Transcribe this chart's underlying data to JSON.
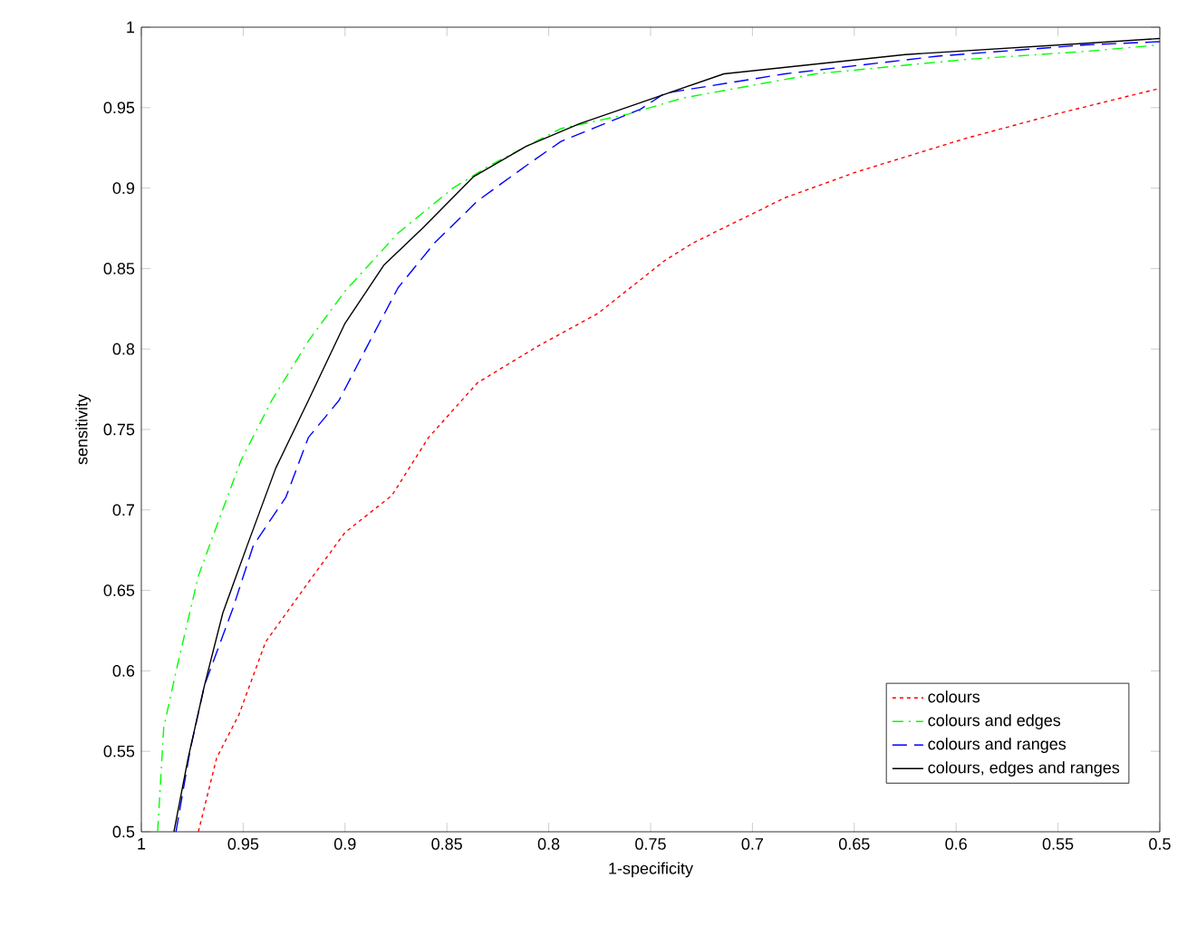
{
  "chart_data": {
    "type": "line",
    "xlabel": "1-specificity",
    "ylabel": "sensitivity",
    "xlim": [
      1,
      0.5
    ],
    "ylim": [
      0.5,
      1
    ],
    "xticks": [
      1,
      0.95,
      0.9,
      0.85,
      0.8,
      0.75,
      0.7,
      0.65,
      0.6,
      0.55,
      0.5
    ],
    "yticks": [
      0.5,
      0.55,
      0.6,
      0.65,
      0.7,
      0.75,
      0.8,
      0.85,
      0.9,
      0.95,
      1
    ],
    "legend": "bottom right",
    "series": [
      {
        "name": "colours",
        "color": "#ff0000",
        "line_style": "dotted",
        "x": [
          0.972,
          0.963,
          0.952,
          0.939,
          0.918,
          0.9,
          0.877,
          0.859,
          0.835,
          0.805,
          0.776,
          0.743,
          0.729,
          0.684,
          0.649,
          0.595,
          0.551,
          0.5
        ],
        "values": [
          0.5,
          0.546,
          0.573,
          0.618,
          0.655,
          0.686,
          0.709,
          0.745,
          0.779,
          0.802,
          0.822,
          0.855,
          0.866,
          0.894,
          0.91,
          0.931,
          0.946,
          0.962
        ]
      },
      {
        "name": "colours and edges",
        "color": "#00ff00",
        "line_style": "dashdot",
        "x": [
          0.992,
          0.989,
          0.982,
          0.972,
          0.961,
          0.951,
          0.936,
          0.918,
          0.9,
          0.874,
          0.847,
          0.829,
          0.794,
          0.761,
          0.734,
          0.669,
          0.595,
          0.536,
          0.5
        ],
        "values": [
          0.5,
          0.565,
          0.605,
          0.659,
          0.697,
          0.731,
          0.768,
          0.805,
          0.836,
          0.872,
          0.9,
          0.914,
          0.937,
          0.946,
          0.956,
          0.971,
          0.98,
          0.985,
          0.989
        ]
      },
      {
        "name": "colours and ranges",
        "color": "#0000ff",
        "line_style": "dashed",
        "x": [
          0.983,
          0.976,
          0.969,
          0.955,
          0.945,
          0.929,
          0.918,
          0.903,
          0.889,
          0.874,
          0.856,
          0.835,
          0.811,
          0.794,
          0.755,
          0.743,
          0.684,
          0.609,
          0.536,
          0.5
        ],
        "values": [
          0.5,
          0.551,
          0.591,
          0.639,
          0.678,
          0.708,
          0.745,
          0.768,
          0.802,
          0.838,
          0.866,
          0.892,
          0.914,
          0.929,
          0.949,
          0.959,
          0.971,
          0.982,
          0.989,
          0.991
        ]
      },
      {
        "name": "colours, edges and ranges",
        "color": "#000000",
        "line_style": "solid",
        "x": [
          0.984,
          0.977,
          0.969,
          0.96,
          0.948,
          0.934,
          0.918,
          0.9,
          0.881,
          0.862,
          0.837,
          0.811,
          0.785,
          0.746,
          0.714,
          0.625,
          0.536,
          0.5
        ],
        "values": [
          0.5,
          0.546,
          0.591,
          0.636,
          0.678,
          0.726,
          0.768,
          0.816,
          0.852,
          0.875,
          0.907,
          0.926,
          0.94,
          0.957,
          0.971,
          0.983,
          0.99,
          0.993
        ]
      }
    ]
  }
}
